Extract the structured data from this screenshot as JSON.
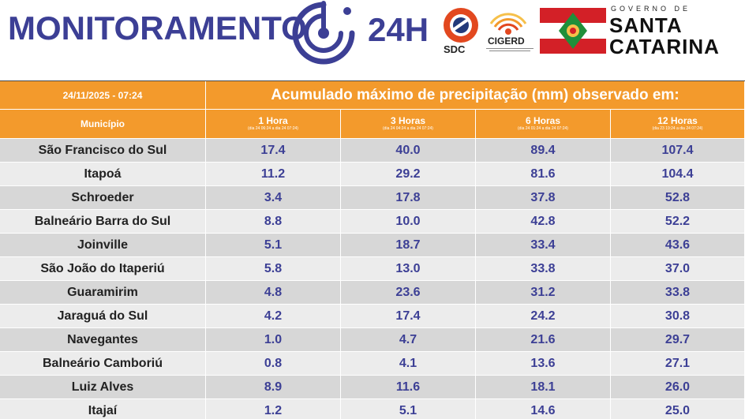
{
  "header": {
    "title": "MONITORAMENTO",
    "title_suffix": "24H",
    "sdc_label": "SDC",
    "cigerd_label": "CIGERD",
    "gov_small": "GOVERNO DE",
    "gov_line1": "SANTA",
    "gov_line2": "CATARINA"
  },
  "table": {
    "date_time": "24/11/2025 - 07:24",
    "main_header": "Acumulado máximo de precipitação (mm) observado em:",
    "municipio_header": "Município",
    "periods": [
      {
        "label": "1 Hora",
        "range": "(dia 24 06:24 a dia 24 07:24)"
      },
      {
        "label": "3 Horas",
        "range": "(dia 24 04:24 a dia 24 07:24)"
      },
      {
        "label": "6 Horas",
        "range": "(dia 24 01:24 a dia 24 07:24)"
      },
      {
        "label": "12 Horas",
        "range": "(dia 23 19:24 a dia 24 07:24)"
      }
    ],
    "rows": [
      {
        "municipio": "São Francisco do Sul",
        "h1": "17.4",
        "h3": "40.0",
        "h6": "89.4",
        "h12": "107.4"
      },
      {
        "municipio": "Itapoá",
        "h1": "11.2",
        "h3": "29.2",
        "h6": "81.6",
        "h12": "104.4"
      },
      {
        "municipio": "Schroeder",
        "h1": "3.4",
        "h3": "17.8",
        "h6": "37.8",
        "h12": "52.8"
      },
      {
        "municipio": "Balneário Barra do Sul",
        "h1": "8.8",
        "h3": "10.0",
        "h6": "42.8",
        "h12": "52.2"
      },
      {
        "municipio": "Joinville",
        "h1": "5.1",
        "h3": "18.7",
        "h6": "33.4",
        "h12": "43.6"
      },
      {
        "municipio": "São João do Itaperiú",
        "h1": "5.8",
        "h3": "13.0",
        "h6": "33.8",
        "h12": "37.0"
      },
      {
        "municipio": "Guaramirim",
        "h1": "4.8",
        "h3": "23.6",
        "h6": "31.2",
        "h12": "33.8"
      },
      {
        "municipio": "Jaraguá do Sul",
        "h1": "4.2",
        "h3": "17.4",
        "h6": "24.2",
        "h12": "30.8"
      },
      {
        "municipio": "Navegantes",
        "h1": "1.0",
        "h3": "4.7",
        "h6": "21.6",
        "h12": "29.7"
      },
      {
        "municipio": "Balneário Camboriú",
        "h1": "0.8",
        "h3": "4.1",
        "h6": "13.6",
        "h12": "27.1"
      },
      {
        "municipio": "Luiz Alves",
        "h1": "8.9",
        "h3": "11.6",
        "h6": "18.1",
        "h12": "26.0"
      },
      {
        "municipio": "Itajaí",
        "h1": "1.2",
        "h3": "5.1",
        "h6": "14.6",
        "h12": "25.0"
      }
    ]
  },
  "colors": {
    "brand_blue": "#3c3f95",
    "header_orange": "#f39a2c",
    "row_dark": "#d7d7d7",
    "row_light": "#ececec",
    "flag_red": "#d32027",
    "flag_green": "#1f8f3a"
  },
  "icons": {
    "radar": "radar-icon",
    "sdc": "sdc-logo-icon",
    "cigerd": "cigerd-logo-icon",
    "flag": "santa-catarina-flag-icon"
  }
}
